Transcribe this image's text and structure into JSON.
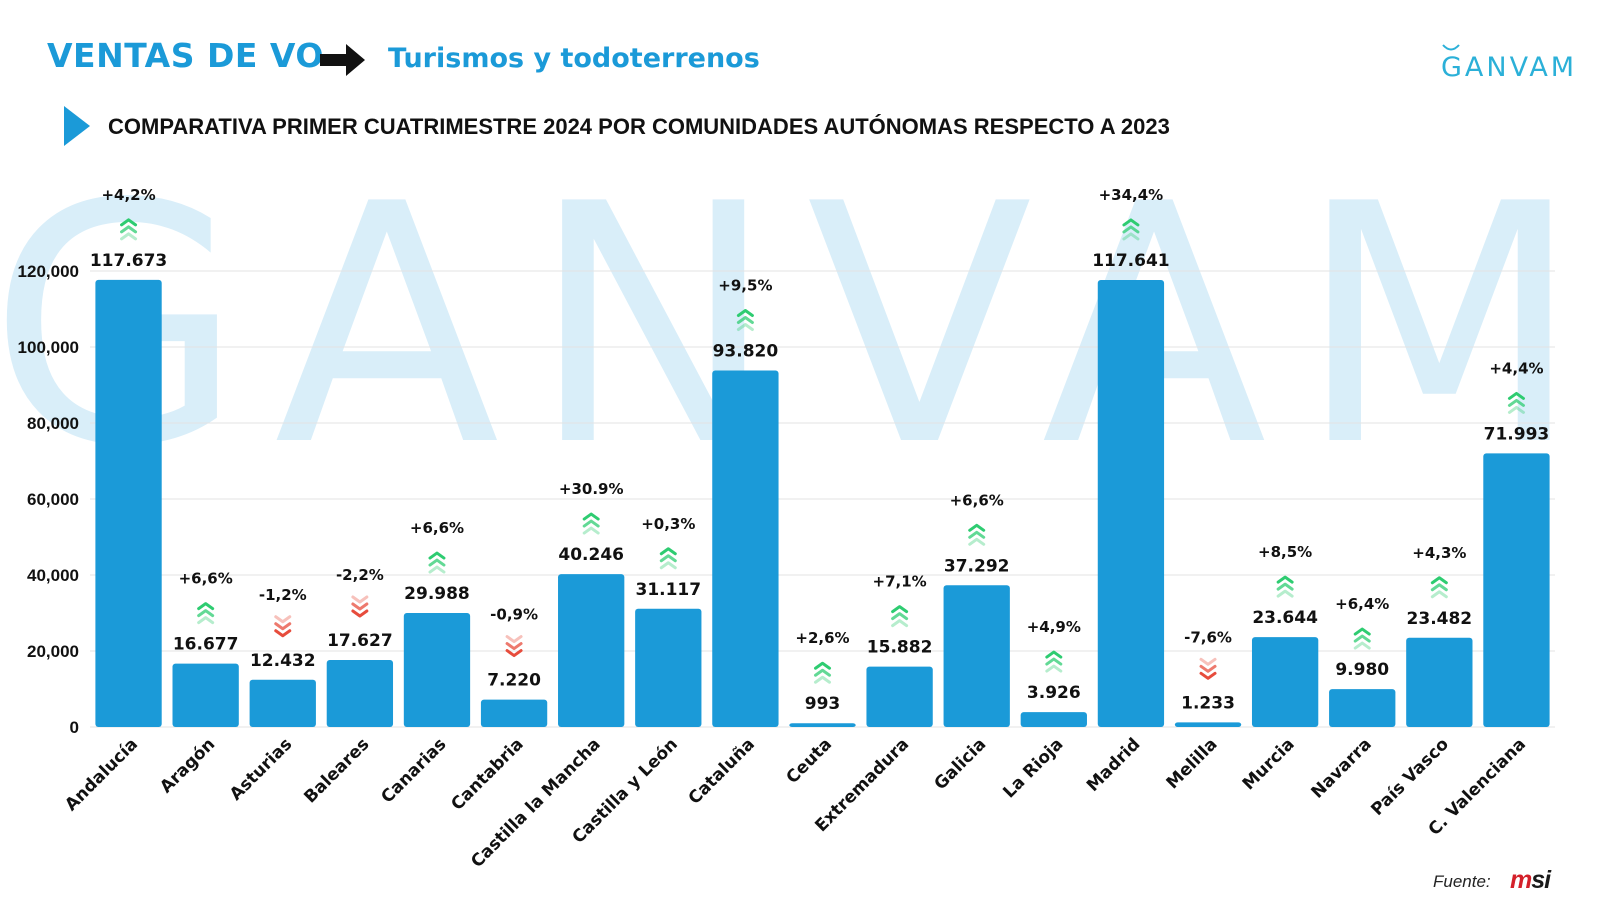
{
  "header": {
    "title": "VENTAS DE VO",
    "subtitle": "Turismos y todoterrenos",
    "logo": "GANVAM"
  },
  "section": {
    "title": "COMPARATIVA PRIMER CUATRIMESTRE 2024 POR COMUNIDADES AUTÓNOMAS RESPECTO A 2023"
  },
  "watermark": "GANVAM",
  "footer": {
    "source_label": "Fuente:",
    "source_logo_m": "m",
    "source_logo_rest": "si"
  },
  "colors": {
    "bar": "#1b9ad8",
    "accent": "#1b9ad8",
    "up_arrow": "#2ecc71",
    "down_arrow": "#e74c3c",
    "watermark": "#d9eef9"
  },
  "chart_data": {
    "type": "bar",
    "categories": [
      "Andalucía",
      "Aragón",
      "Asturias",
      "Baleares",
      "Canarias",
      "Cantabria",
      "Castilla la Mancha",
      "Castilla y León",
      "Cataluña",
      "Ceuta",
      "Extremadura",
      "Galicia",
      "La Rioja",
      "Madrid",
      "Melilla",
      "Murcia",
      "Navarra",
      "País Vasco",
      "C. Valenciana"
    ],
    "values": [
      117673,
      16677,
      12432,
      17627,
      29988,
      7220,
      40246,
      31117,
      93820,
      993,
      15882,
      37292,
      3926,
      117641,
      1233,
      23644,
      9980,
      23482,
      71993
    ],
    "value_labels": [
      "117.673",
      "16.677",
      "12.432",
      "17.627",
      "29.988",
      "7.220",
      "40.246",
      "31.117",
      "93.820",
      "993",
      "15.882",
      "37.292",
      "3.926",
      "117.641",
      "1.233",
      "23.644",
      "9.980",
      "23.482",
      "71.993"
    ],
    "change_labels": [
      "+4,2%",
      "+6,6%",
      "-1,2%",
      "-2,2%",
      "+6,6%",
      "-0,9%",
      "+30.9%",
      "+0,3%",
      "+9,5%",
      "+2,6%",
      "+7,1%",
      "+6,6%",
      "+4,9%",
      "+34,4%",
      "-7,6%",
      "+8,5%",
      "+6,4%",
      "+4,3%",
      "+4,4%"
    ],
    "change_direction": [
      "up",
      "up",
      "down",
      "down",
      "up",
      "down",
      "up",
      "up",
      "up",
      "up",
      "up",
      "up",
      "up",
      "up",
      "down",
      "up",
      "up",
      "up",
      "up"
    ],
    "y_ticks": [
      "0",
      "20,000",
      "40,000",
      "60,000",
      "80,000",
      "100,000",
      "120,000"
    ],
    "y_tick_values": [
      0,
      20000,
      40000,
      60000,
      80000,
      100000,
      120000
    ],
    "ylim": [
      0,
      120000
    ],
    "title": "COMPARATIVA PRIMER CUATRIMESTRE 2024 POR COMUNIDADES AUTÓNOMAS RESPECTO A 2023",
    "xlabel": "",
    "ylabel": "",
    "grid": true,
    "legend": "none"
  }
}
